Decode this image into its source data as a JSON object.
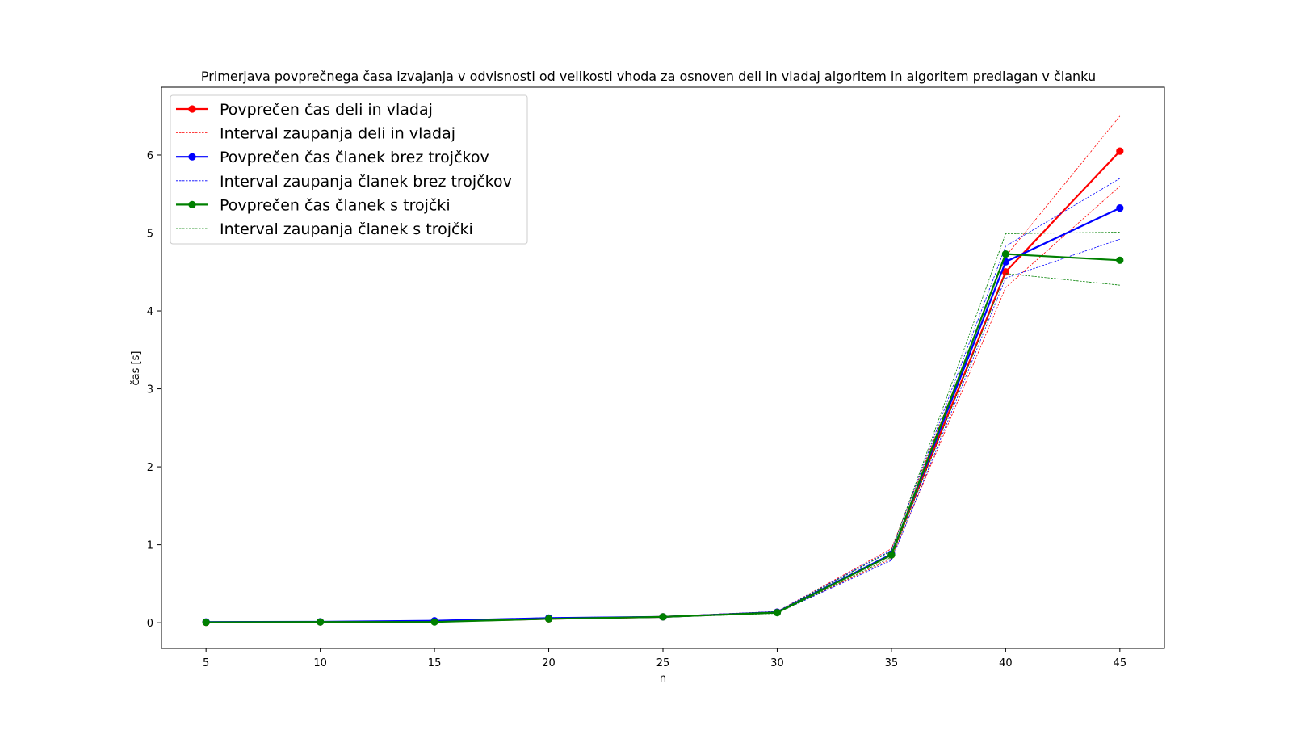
{
  "chart_data": {
    "type": "line",
    "title": "Primerjava povprečnega časa izvajanja v odvisnosti od velikosti vhoda za osnoven deli in vladaj algoritem in algoritem predlagan v članku",
    "xlabel": "n",
    "ylabel": "čas [s]",
    "x": [
      5,
      10,
      15,
      20,
      25,
      30,
      35,
      40,
      45
    ],
    "xlim": [
      3.05,
      46.95
    ],
    "ylim": [
      -0.33,
      6.87
    ],
    "xticks": [
      "5",
      "10",
      "15",
      "20",
      "25",
      "30",
      "35",
      "40",
      "45"
    ],
    "yticks": [
      "0",
      "1",
      "2",
      "3",
      "4",
      "5",
      "6"
    ],
    "grid": false,
    "legend_position": "upper-left",
    "series": [
      {
        "name": "Povprečen čas deli in vladaj",
        "color": "#ff0000",
        "style": "solid-marker",
        "values": [
          0.005,
          0.01,
          0.015,
          0.05,
          0.075,
          0.135,
          0.87,
          4.5,
          6.05
        ]
      },
      {
        "name": "Interval zaupanja deli in vladaj",
        "color": "#ff0000",
        "style": "dotted",
        "lower": [
          0.003,
          0.008,
          0.012,
          0.045,
          0.07,
          0.125,
          0.82,
          4.3,
          5.6
        ],
        "upper": [
          0.007,
          0.012,
          0.018,
          0.055,
          0.08,
          0.145,
          0.95,
          4.7,
          6.5
        ]
      },
      {
        "name": "Povprečen čas članek brez trojčkov",
        "color": "#0000ff",
        "style": "solid-marker",
        "values": [
          0.01,
          0.012,
          0.025,
          0.06,
          0.075,
          0.135,
          0.88,
          4.63,
          5.32
        ]
      },
      {
        "name": "Interval zaupanja članek brez trojčkov",
        "color": "#0000ff",
        "style": "dotted",
        "lower": [
          0.008,
          0.01,
          0.02,
          0.055,
          0.07,
          0.125,
          0.8,
          4.42,
          4.92
        ],
        "upper": [
          0.012,
          0.014,
          0.03,
          0.065,
          0.08,
          0.145,
          0.93,
          4.83,
          5.7
        ]
      },
      {
        "name": "Povprečen čas članek s trojčki",
        "color": "#008000",
        "style": "solid-marker",
        "values": [
          0.005,
          0.01,
          0.01,
          0.05,
          0.075,
          0.13,
          0.87,
          4.73,
          4.65
        ]
      },
      {
        "name": "Interval zaupanja članek s trojčki",
        "color": "#008000",
        "style": "dotted",
        "lower": [
          0.003,
          0.008,
          0.008,
          0.045,
          0.07,
          0.12,
          0.84,
          4.48,
          4.33
        ],
        "upper": [
          0.007,
          0.012,
          0.012,
          0.055,
          0.08,
          0.14,
          0.92,
          4.99,
          5.01
        ]
      }
    ]
  }
}
